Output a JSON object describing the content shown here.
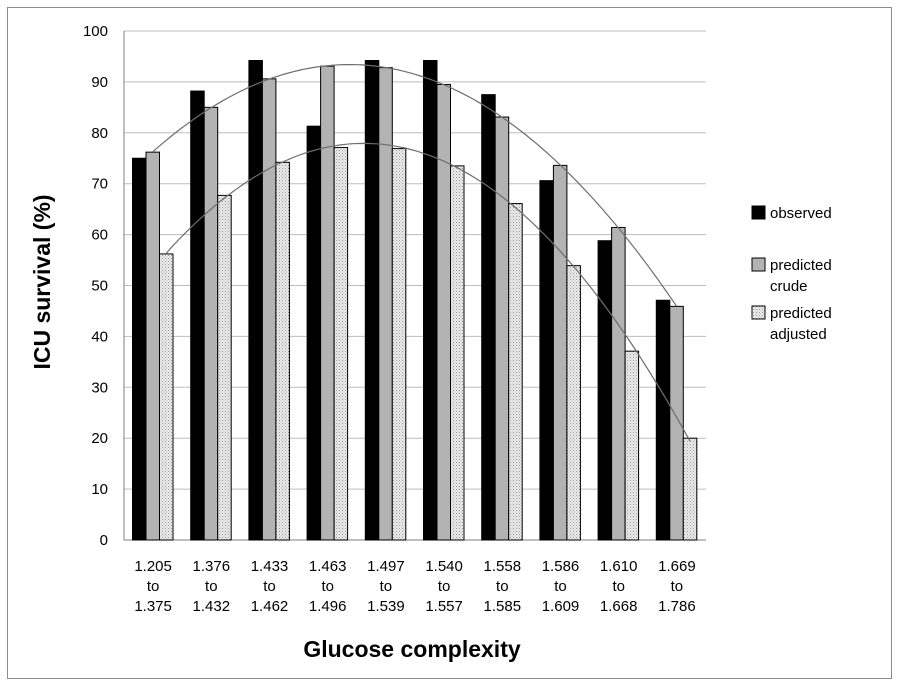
{
  "chart_data": {
    "type": "bar",
    "xlabel": "Glucose complexity",
    "ylabel": "ICU survival (%)",
    "ylim": [
      0,
      100
    ],
    "yticks": [
      0,
      10,
      20,
      30,
      40,
      50,
      60,
      70,
      80,
      90,
      100
    ],
    "grid": true,
    "legend_position": "right",
    "categories": [
      {
        "line1": "1.205",
        "line2": "to",
        "line3": "1.375"
      },
      {
        "line1": "1.376",
        "line2": "to",
        "line3": "1.432"
      },
      {
        "line1": "1.433",
        "line2": "to",
        "line3": "1.462"
      },
      {
        "line1": "1.463",
        "line2": "to",
        "line3": "1.496"
      },
      {
        "line1": "1.497",
        "line2": "to",
        "line3": "1.539"
      },
      {
        "line1": "1.540",
        "line2": "to",
        "line3": "1.557"
      },
      {
        "line1": "1.558",
        "line2": "to",
        "line3": "1.585"
      },
      {
        "line1": "1.586",
        "line2": "to",
        "line3": "1.609"
      },
      {
        "line1": "1.610",
        "line2": "to",
        "line3": "1.668"
      },
      {
        "line1": "1.669",
        "line2": "to",
        "line3": "1.786"
      }
    ],
    "series": [
      {
        "name": "observed",
        "legend_lines": [
          "observed"
        ],
        "color": "#000000",
        "values": [
          75.0,
          88.2,
          94.2,
          81.3,
          94.2,
          94.2,
          87.5,
          70.6,
          58.8,
          47.1
        ]
      },
      {
        "name": "predicted crude",
        "legend_lines": [
          "predicted",
          "crude"
        ],
        "color": "#b3b3b3",
        "values": [
          76.2,
          85.0,
          90.6,
          93.1,
          92.8,
          89.5,
          83.1,
          73.6,
          61.4,
          45.9
        ]
      },
      {
        "name": "predicted adjusted",
        "legend_lines": [
          "predicted",
          "adjusted"
        ],
        "color": "#e6e6e6",
        "pattern": "dotted",
        "values": [
          56.2,
          67.7,
          74.2,
          77.1,
          76.9,
          73.5,
          66.1,
          53.9,
          37.1,
          20.0
        ]
      }
    ],
    "trendlines": [
      {
        "series": "predicted crude",
        "type": "polynomial"
      },
      {
        "series": "predicted adjusted",
        "type": "polynomial"
      }
    ]
  }
}
